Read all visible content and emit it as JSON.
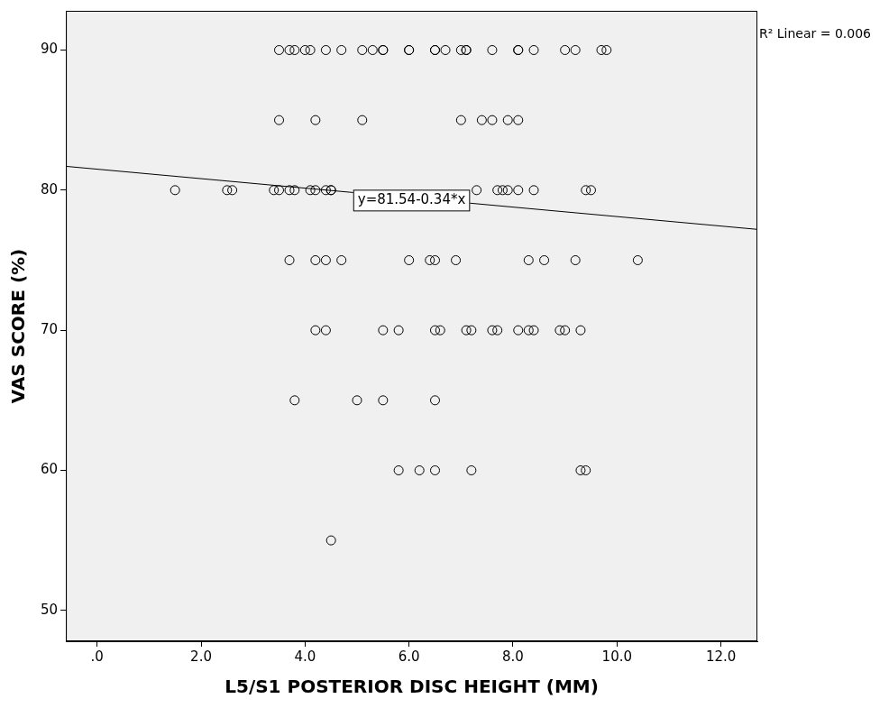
{
  "chart_data": {
    "type": "scatter",
    "x_label": "L5/S1 POSTERIOR DISC HEIGHT (MM)",
    "y_label": "VAS SCORE (%)",
    "annotations": [
      "y=81.54-0.34*x",
      "R² Linear = 0.006"
    ],
    "xlim": [
      -0.6,
      12.7
    ],
    "ylim": [
      47.8,
      92.8
    ],
    "xticks": [
      {
        "value": 0,
        "label": ".0"
      },
      {
        "value": 2,
        "label": "2.0"
      },
      {
        "value": 4,
        "label": "4.0"
      },
      {
        "value": 6,
        "label": "6.0"
      },
      {
        "value": 8,
        "label": "8.0"
      },
      {
        "value": 10,
        "label": "10.0"
      },
      {
        "value": 12,
        "label": "12.0"
      }
    ],
    "yticks": [
      50,
      60,
      70,
      80,
      90
    ],
    "grid": false,
    "series": [
      {
        "type": "scatter",
        "marker": "circle",
        "color": "#000000",
        "x": [
          3.5,
          3.7,
          3.8,
          4.0,
          4.1,
          4.4,
          4.7,
          5.1,
          5.3,
          5.5,
          5.5,
          6.0,
          6.0,
          6.5,
          6.5,
          6.7,
          7.0,
          7.1,
          7.1,
          7.6,
          8.1,
          8.1,
          8.4,
          9.0,
          9.2,
          9.7,
          9.8,
          3.5,
          4.2,
          5.1,
          7.0,
          7.4,
          7.6,
          7.9,
          8.1,
          1.5,
          2.5,
          2.6,
          3.4,
          3.5,
          3.7,
          3.8,
          4.1,
          4.2,
          4.4,
          4.5,
          4.5,
          7.3,
          7.7,
          7.8,
          7.9,
          8.1,
          8.4,
          9.4,
          9.5,
          3.7,
          4.2,
          4.4,
          4.7,
          6.0,
          6.4,
          6.5,
          6.9,
          8.3,
          8.6,
          9.2,
          10.4,
          4.2,
          4.4,
          5.5,
          5.8,
          6.5,
          6.6,
          7.1,
          7.2,
          7.6,
          7.7,
          8.1,
          8.3,
          8.4,
          8.9,
          9.0,
          9.3,
          3.8,
          5.0,
          5.5,
          6.5,
          5.8,
          6.2,
          6.5,
          7.2,
          9.3,
          9.4,
          4.5
        ],
        "values": [
          90,
          90,
          90,
          90,
          90,
          90,
          90,
          90,
          90,
          90,
          90,
          90,
          90,
          90,
          90,
          90,
          90,
          90,
          90,
          90,
          90,
          90,
          90,
          90,
          90,
          90,
          90,
          85,
          85,
          85,
          85,
          85,
          85,
          85,
          85,
          80,
          80,
          80,
          80,
          80,
          80,
          80,
          80,
          80,
          80,
          80,
          80,
          80,
          80,
          80,
          80,
          80,
          80,
          80,
          80,
          75,
          75,
          75,
          75,
          75,
          75,
          75,
          75,
          75,
          75,
          75,
          75,
          70,
          70,
          70,
          70,
          70,
          70,
          70,
          70,
          70,
          70,
          70,
          70,
          70,
          70,
          70,
          70,
          65,
          65,
          65,
          65,
          60,
          60,
          60,
          60,
          60,
          60,
          55
        ]
      },
      {
        "type": "line",
        "line_style": "solid",
        "color": "#000000",
        "x": [
          -0.6,
          12.7
        ],
        "values": [
          81.7,
          77.2
        ]
      }
    ]
  }
}
